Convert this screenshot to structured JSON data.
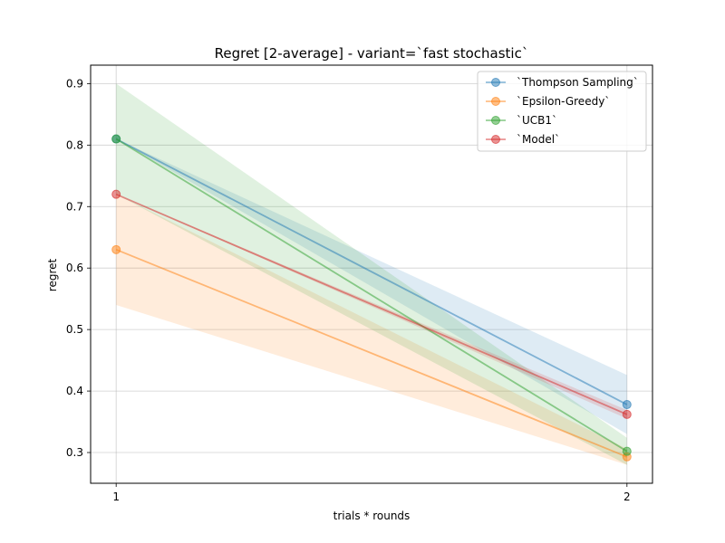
{
  "chart_data": {
    "type": "line",
    "title": "Regret [2-average] - variant=`fast stochastic`",
    "xlabel": "trials * rounds",
    "ylabel": "regret",
    "x": [
      1,
      2
    ],
    "xlim": [
      0.95,
      2.05
    ],
    "ylim": [
      0.25,
      0.93
    ],
    "xticks": [
      1,
      2
    ],
    "yticks": [
      0.3,
      0.4,
      0.5,
      0.6,
      0.7,
      0.8,
      0.9
    ],
    "grid": true,
    "legend_position": "top-right",
    "series": [
      {
        "name": "`Thompson Sampling`",
        "color": "#1f77b4",
        "values": [
          0.81,
          0.378
        ],
        "band_lower": [
          0.81,
          0.33
        ],
        "band_upper": [
          0.81,
          0.426
        ]
      },
      {
        "name": "`Epsilon-Greedy`",
        "color": "#ff7f0e",
        "values": [
          0.63,
          0.293
        ],
        "band_lower": [
          0.54,
          0.28
        ],
        "band_upper": [
          0.72,
          0.306
        ]
      },
      {
        "name": "`UCB1`",
        "color": "#2ca02c",
        "values": [
          0.81,
          0.302
        ],
        "band_lower": [
          0.72,
          0.28
        ],
        "band_upper": [
          0.9,
          0.324
        ]
      },
      {
        "name": "`Model`",
        "color": "#d62728",
        "values": [
          0.72,
          0.362
        ],
        "band_lower": [
          0.72,
          0.355
        ],
        "band_upper": [
          0.72,
          0.369
        ]
      }
    ]
  }
}
